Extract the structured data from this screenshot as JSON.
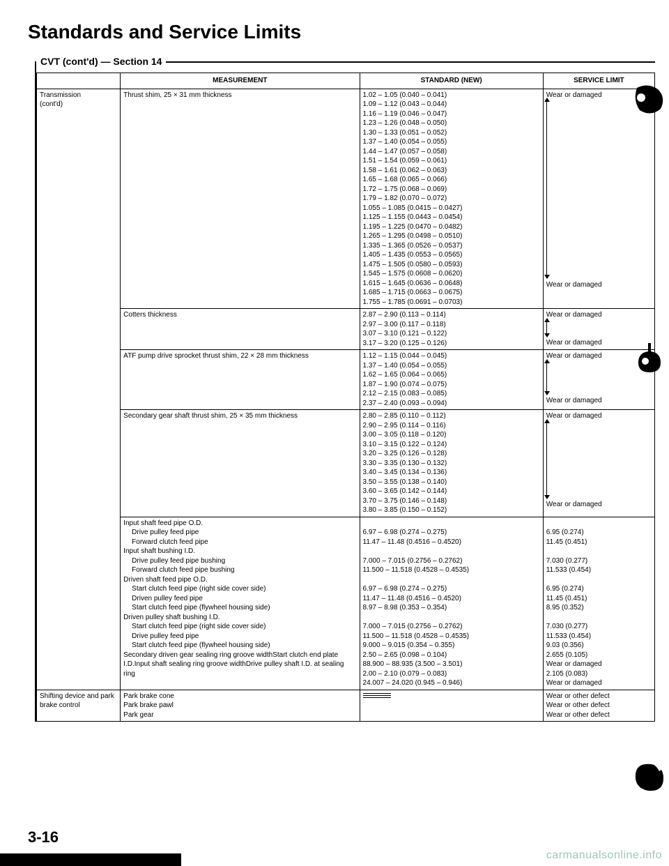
{
  "title": "Standards and Service Limits",
  "section_header": "CVT (cont'd) — Section 14",
  "headers": {
    "cat": "",
    "meas": "MEASUREMENT",
    "std": "STANDARD (NEW)",
    "lim": "SERVICE LIMIT"
  },
  "categories": {
    "transmission": "Transmission (cont'd)",
    "shifting": "Shifting device and park brake control"
  },
  "row1": {
    "meas": "Thrust shim, 25 × 31 mm thickness",
    "std": [
      "1.02 – 1.05 (0.040 – 0.041)",
      "1.09 – 1.12 (0.043 – 0.044)",
      "1.16 – 1.19 (0.046 – 0.047)",
      "1.23 – 1.26 (0.048 – 0.050)",
      "1.30 – 1.33 (0.051 – 0.052)",
      "1.37 – 1.40 (0.054 – 0.055)",
      "1.44 – 1.47 (0.057 – 0.058)",
      "1.51 – 1.54 (0.059 – 0.061)",
      "1.58 – 1.61 (0.062 – 0.063)",
      "1.65 – 1.68 (0.065 – 0.066)",
      "1.72 – 1.75 (0.068 – 0.069)",
      "1.79 – 1.82 (0.070 – 0.072)",
      "1.055 – 1.085 (0.0415 – 0.0427)",
      "1.125 – 1.155 (0.0443 – 0.0454)",
      "1.195 – 1.225 (0.0470 – 0.0482)",
      "1.265 – 1.295 (0.0498 – 0.0510)",
      "1.335 – 1.365 (0.0526 – 0.0537)",
      "1.405 – 1.435 (0.0553 – 0.0565)",
      "1.475 – 1.505 (0.0580 – 0.0593)",
      "1.545 – 1.575 (0.0608 – 0.0620)",
      "1.615 – 1.645 (0.0636 – 0.0648)",
      "1.685 – 1.715 (0.0663 – 0.0675)",
      "1.755 – 1.785 (0.0691 – 0.0703)"
    ],
    "lim_top": "Wear or damaged",
    "lim_bot": "Wear or damaged"
  },
  "row2": {
    "meas": "Cotters thickness",
    "std": [
      "2.87 – 2.90 (0.113 – 0.114)",
      "2.97 – 3.00 (0.117 – 0.118)",
      "3.07 – 3.10 (0.121 – 0.122)",
      "3.17 – 3.20 (0.125 – 0.126)"
    ],
    "lim_top": "Wear or damaged",
    "lim_bot": "Wear or damaged"
  },
  "row3": {
    "meas": "ATF pump drive sprocket thrust shim, 22 × 28 mm thickness",
    "std": [
      "1.12 – 1.15 (0.044 – 0.045)",
      "1.37 – 1.40 (0.054 – 0.055)",
      "1.62 – 1.65 (0.064 – 0.065)",
      "1.87 – 1.90 (0.074 – 0.075)",
      "2.12 – 2.15 (0.083 – 0.085)",
      "2.37 – 2.40 (0.093 – 0.094)"
    ],
    "lim_top": "Wear or damaged",
    "lim_bot": "Wear or damaged"
  },
  "row4": {
    "meas": "Secondary gear shaft thrust shim, 25 × 35 mm thickness",
    "std": [
      "2.80 – 2.85 (0.110 – 0.112)",
      "2.90 – 2.95 (0.114 – 0.116)",
      "3.00 – 3.05 (0.118 – 0.120)",
      "3.10 – 3.15 (0.122 – 0.124)",
      "3.20 – 3.25 (0.126 – 0.128)",
      "3.30 – 3.35 (0.130 – 0.132)",
      "3.40 – 3.45 (0.134 – 0.136)",
      "3.50 – 3.55 (0.138 – 0.140)",
      "3.60 – 3.65 (0.142 – 0.144)",
      "3.70 – 3.75 (0.146 – 0.148)",
      "3.80 – 3.85 (0.150 – 0.152)"
    ],
    "lim_top": "Wear or damaged",
    "lim_bot": "Wear or damaged"
  },
  "row5": {
    "meas": [
      {
        "t": "Input shaft feed pipe O.D.",
        "i": 0
      },
      {
        "t": "Drive pulley feed pipe",
        "i": 1
      },
      {
        "t": "Forward clutch feed pipe",
        "i": 1
      },
      {
        "t": "Input shaft bushing I.D.",
        "i": 0
      },
      {
        "t": "Drive pulley feed pipe bushing",
        "i": 1
      },
      {
        "t": "Forward clutch feed pipe bushing",
        "i": 1
      },
      {
        "t": "Driven shaft feed pipe O.D.",
        "i": 0
      },
      {
        "t": "Start clutch feed pipe (right side cover side)",
        "i": 1
      },
      {
        "t": "Driven pulley feed pipe",
        "i": 1
      },
      {
        "t": "Start clutch feed pipe (flywheel housing side)",
        "i": 1
      },
      {
        "t": "Driven pulley shaft bushing I.D.",
        "i": 0
      },
      {
        "t": "Start clutch feed pipe (right side cover side)",
        "i": 1
      },
      {
        "t": "Drive pulley feed pipe",
        "i": 1
      },
      {
        "t": "Start clutch feed pipe (flywheel housing side)",
        "i": 1
      },
      {
        "t": "Secondary driven gear sealing ring groove width",
        "i": 0
      },
      {
        "t": "Start clutch end plate I.D.",
        "i": 0
      },
      {
        "t": "Input shaft sealing ring groove width",
        "i": 0
      },
      {
        "t": "Drive pulley shaft I.D. at sealing ring",
        "i": 0
      }
    ],
    "std": [
      "",
      "6.97 – 6.98 (0.274 – 0.275)",
      "11.47 – 11.48 (0.4516 – 0.4520)",
      "",
      "7.000 – 7.015 (0.2756 – 0.2762)",
      "11.500 – 11.518 (0.4528 – 0.4535)",
      "",
      "6.97 – 6.98 (0.274 – 0.275)",
      "11.47 – 11.48 (0.4516 – 0.4520)",
      "8.97 – 8.98 (0.353 – 0.354)",
      "",
      "7.000 – 7.015 (0.2756 – 0.2762)",
      "11.500 – 11.518 (0.4528 – 0.4535)",
      "9.000 – 9.015 (0.354 – 0.355)",
      "2.50 – 2.65 (0.098 – 0.104)",
      "88.900 – 88.935 (3.500 – 3.501)",
      "2.00 – 2.10 (0.079 – 0.083)",
      "24.007 – 24.020 (0.945 – 0.946)"
    ],
    "lim": [
      "",
      "6.95 (0.274)",
      "11.45 (0.451)",
      "",
      "7.030 (0.277)",
      "11.533 (0.454)",
      "",
      "6.95 (0.274)",
      "11.45 (0.451)",
      "8.95 (0.352)",
      "",
      "7.030 (0.277)",
      "11.533 (0.454)",
      "9.03 (0.356)",
      "2.655 (0.105)",
      "Wear or damaged",
      "2.105 (0.083)",
      "Wear or damaged"
    ]
  },
  "row6": {
    "meas": [
      "Park brake cone",
      "Park brake pawl",
      "Park gear"
    ],
    "lim": [
      "Wear or other defect",
      "Wear or other defect",
      "Wear or other defect"
    ]
  },
  "page_number": "3-16",
  "watermark": "carmanualsonline.info"
}
